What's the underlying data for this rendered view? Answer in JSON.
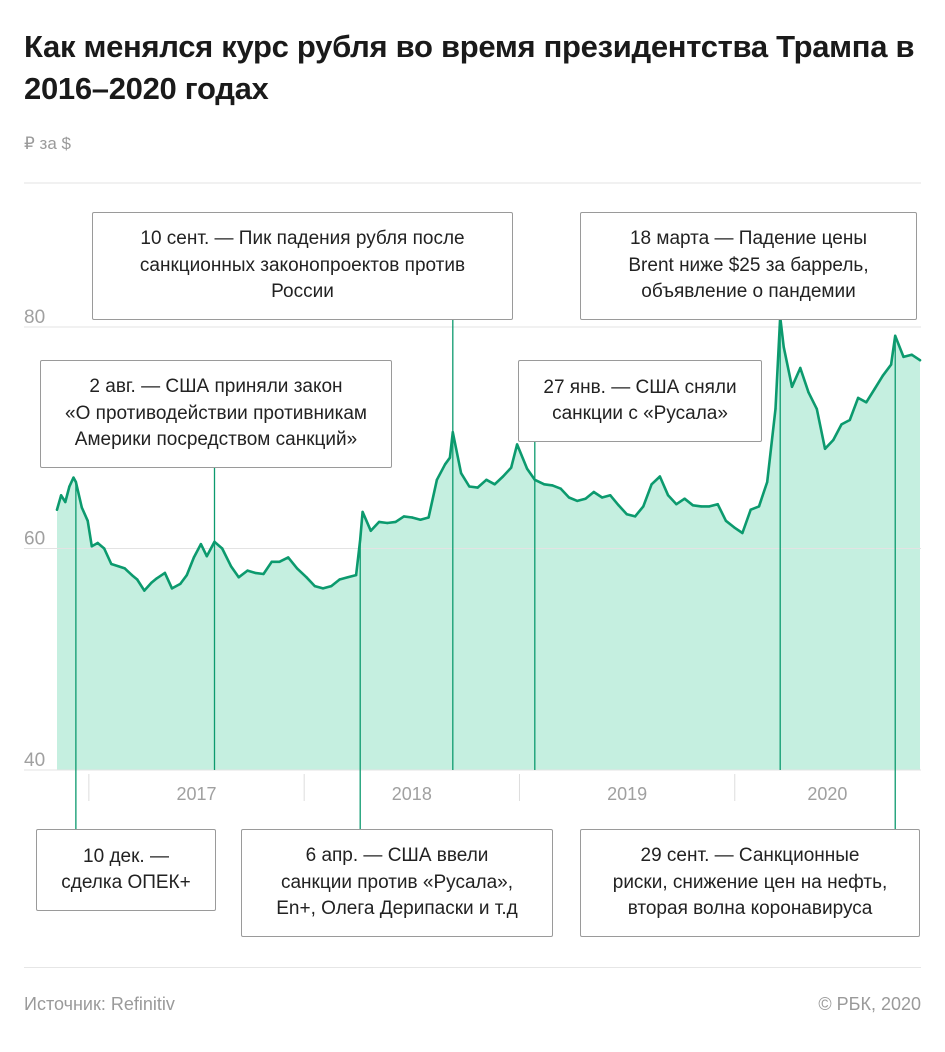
{
  "title": "Как менялся курс рубля во время президентства Трампа в 2016–2020 годах",
  "unit": "₽ за $",
  "chart_data": {
    "type": "area",
    "y_unit": "₽ за $",
    "ylim": [
      40,
      93
    ],
    "y_ticks": [
      40,
      60,
      80
    ],
    "x_range": [
      "2016-11-08",
      "2020-11-10"
    ],
    "x_labels": [
      "2017",
      "2018",
      "2019",
      "2020"
    ],
    "grid": true,
    "colors": {
      "line": "#0c9a6e",
      "fill": "#c5efe0",
      "grid": "#e3e3e3",
      "annotation_line": "#0c9a6e"
    },
    "series": [
      {
        "points": [
          [
            "2016-11-08",
            63.5
          ],
          [
            "2016-11-15",
            64.8
          ],
          [
            "2016-11-22",
            64.2
          ],
          [
            "2016-11-29",
            65.6
          ],
          [
            "2016-12-06",
            66.4
          ],
          [
            "2016-12-10",
            66.0
          ],
          [
            "2016-12-20",
            63.7
          ],
          [
            "2016-12-30",
            62.5
          ],
          [
            "2017-01-06",
            60.2
          ],
          [
            "2017-01-16",
            60.5
          ],
          [
            "2017-01-27",
            60.0
          ],
          [
            "2017-02-08",
            58.6
          ],
          [
            "2017-02-20",
            58.4
          ],
          [
            "2017-03-03",
            58.2
          ],
          [
            "2017-03-15",
            57.6
          ],
          [
            "2017-03-24",
            57.2
          ],
          [
            "2017-04-05",
            56.2
          ],
          [
            "2017-04-17",
            56.9
          ],
          [
            "2017-04-26",
            57.3
          ],
          [
            "2017-05-10",
            57.8
          ],
          [
            "2017-05-22",
            56.4
          ],
          [
            "2017-06-05",
            56.8
          ],
          [
            "2017-06-16",
            57.6
          ],
          [
            "2017-06-28",
            59.2
          ],
          [
            "2017-07-10",
            60.4
          ],
          [
            "2017-07-20",
            59.3
          ],
          [
            "2017-08-02",
            60.6
          ],
          [
            "2017-08-15",
            60.0
          ],
          [
            "2017-08-30",
            58.4
          ],
          [
            "2017-09-12",
            57.4
          ],
          [
            "2017-09-27",
            58.0
          ],
          [
            "2017-10-10",
            57.8
          ],
          [
            "2017-10-24",
            57.7
          ],
          [
            "2017-11-07",
            58.8
          ],
          [
            "2017-11-20",
            58.8
          ],
          [
            "2017-12-05",
            59.2
          ],
          [
            "2017-12-20",
            58.2
          ],
          [
            "2018-01-05",
            57.4
          ],
          [
            "2018-01-19",
            56.6
          ],
          [
            "2018-02-02",
            56.4
          ],
          [
            "2018-02-16",
            56.6
          ],
          [
            "2018-03-02",
            57.2
          ],
          [
            "2018-03-16",
            57.4
          ],
          [
            "2018-03-30",
            57.6
          ],
          [
            "2018-04-06",
            60.8
          ],
          [
            "2018-04-10",
            63.3
          ],
          [
            "2018-04-24",
            61.6
          ],
          [
            "2018-05-08",
            62.4
          ],
          [
            "2018-05-22",
            62.3
          ],
          [
            "2018-06-05",
            62.4
          ],
          [
            "2018-06-19",
            62.9
          ],
          [
            "2018-07-03",
            62.8
          ],
          [
            "2018-07-17",
            62.6
          ],
          [
            "2018-07-31",
            62.8
          ],
          [
            "2018-08-14",
            66.2
          ],
          [
            "2018-08-28",
            67.6
          ],
          [
            "2018-09-05",
            68.2
          ],
          [
            "2018-09-10",
            70.5
          ],
          [
            "2018-09-24",
            66.8
          ],
          [
            "2018-10-08",
            65.6
          ],
          [
            "2018-10-22",
            65.5
          ],
          [
            "2018-11-06",
            66.2
          ],
          [
            "2018-11-20",
            65.8
          ],
          [
            "2018-12-04",
            66.5
          ],
          [
            "2018-12-18",
            67.3
          ],
          [
            "2018-12-28",
            69.4
          ],
          [
            "2019-01-14",
            67.2
          ],
          [
            "2019-01-27",
            66.2
          ],
          [
            "2019-02-12",
            65.8
          ],
          [
            "2019-02-26",
            65.7
          ],
          [
            "2019-03-12",
            65.4
          ],
          [
            "2019-03-26",
            64.6
          ],
          [
            "2019-04-09",
            64.3
          ],
          [
            "2019-04-23",
            64.5
          ],
          [
            "2019-05-07",
            65.1
          ],
          [
            "2019-05-21",
            64.6
          ],
          [
            "2019-06-04",
            64.8
          ],
          [
            "2019-06-18",
            63.9
          ],
          [
            "2019-07-02",
            63.1
          ],
          [
            "2019-07-16",
            62.9
          ],
          [
            "2019-07-30",
            63.8
          ],
          [
            "2019-08-13",
            65.8
          ],
          [
            "2019-08-27",
            66.5
          ],
          [
            "2019-09-10",
            64.8
          ],
          [
            "2019-09-24",
            64.0
          ],
          [
            "2019-10-08",
            64.5
          ],
          [
            "2019-10-22",
            63.9
          ],
          [
            "2019-11-05",
            63.8
          ],
          [
            "2019-11-19",
            63.8
          ],
          [
            "2019-12-03",
            64.0
          ],
          [
            "2019-12-17",
            62.5
          ],
          [
            "2019-12-31",
            61.9
          ],
          [
            "2020-01-14",
            61.4
          ],
          [
            "2020-01-28",
            63.5
          ],
          [
            "2020-02-11",
            63.8
          ],
          [
            "2020-02-25",
            66.0
          ],
          [
            "2020-03-10",
            72.6
          ],
          [
            "2020-03-18",
            80.9
          ],
          [
            "2020-03-24",
            78.2
          ],
          [
            "2020-04-07",
            74.6
          ],
          [
            "2020-04-21",
            76.3
          ],
          [
            "2020-05-05",
            74.1
          ],
          [
            "2020-05-19",
            72.6
          ],
          [
            "2020-06-02",
            69.0
          ],
          [
            "2020-06-16",
            69.8
          ],
          [
            "2020-06-30",
            71.2
          ],
          [
            "2020-07-14",
            71.6
          ],
          [
            "2020-07-28",
            73.6
          ],
          [
            "2020-08-11",
            73.2
          ],
          [
            "2020-08-25",
            74.4
          ],
          [
            "2020-09-08",
            75.6
          ],
          [
            "2020-09-22",
            76.6
          ],
          [
            "2020-09-29",
            79.2
          ],
          [
            "2020-10-13",
            77.3
          ],
          [
            "2020-10-27",
            77.5
          ],
          [
            "2020-11-10",
            77.0
          ]
        ]
      }
    ],
    "annotations": [
      {
        "date": "2016-12-10",
        "text": "10 дек. —\nсделка ОПЕК+"
      },
      {
        "date": "2017-08-02",
        "text": "2 авг. — США приняли закон\n«О противодействии противникам\nАмерики посредством санкций»"
      },
      {
        "date": "2018-04-06",
        "text": "6 апр. —  США ввели\nсанкции против «Русала»,\nEn+, Олега Дерипаски и т.д"
      },
      {
        "date": "2018-09-10",
        "text": "10 сент. — Пик падения рубля после\nсанкционных законопроектов против\nРоссии"
      },
      {
        "date": "2019-01-27",
        "text": "27 янв. — США сняли\nсанкции с «Русала»"
      },
      {
        "date": "2020-03-18",
        "text": "18 марта — Падение цены\nBrent ниже $25 за баррель,\nобъявление о пандемии"
      },
      {
        "date": "2020-09-29",
        "text": "29 сент. — Санкционные\nриски, снижение цен на нефть,\nвторая волна коронавируса"
      }
    ]
  },
  "footer": {
    "source": "Источник:  Refinitiv",
    "copyright": "©  РБК, 2020"
  }
}
